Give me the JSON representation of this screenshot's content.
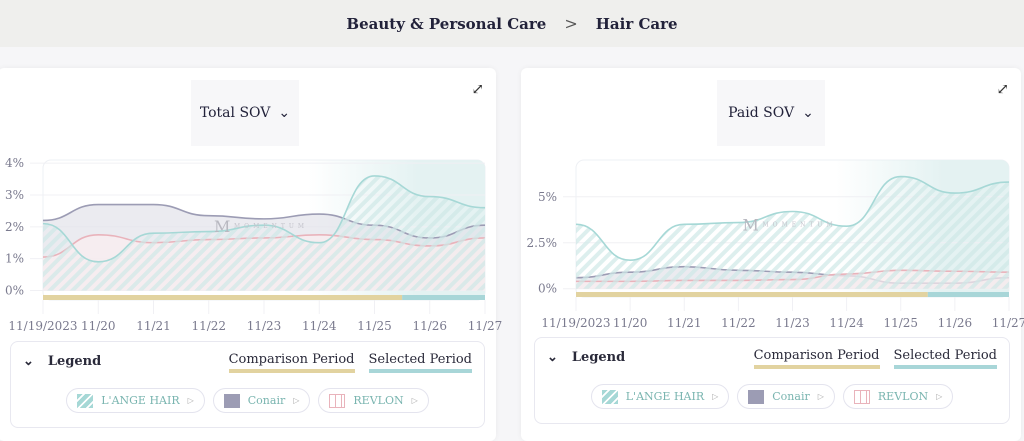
{
  "breadcrumb": {
    "parent": "Beauty & Personal Care",
    "separator": ">",
    "current": "Hair Care"
  },
  "legend": {
    "title": "Legend",
    "comparison": "Comparison Period",
    "selected": "Selected Period",
    "brands": [
      {
        "name": "L'ANGE HAIR",
        "color": "#a6d8d6"
      },
      {
        "name": "Conair",
        "color": "#9c9cb4"
      },
      {
        "name": "REVLON",
        "color": "#e9b3bb"
      }
    ]
  },
  "colors": {
    "comparison": "#e2d3a0",
    "selected": "#a8d6d8"
  },
  "chart_data": [
    {
      "type": "area",
      "title": "Total SOV",
      "categories": [
        "11/19/2023",
        "11/20",
        "11/21",
        "11/22",
        "11/23",
        "11/24",
        "11/25",
        "11/26",
        "11/27"
      ],
      "yticks": [
        "0%",
        "1%",
        "2%",
        "3%",
        "4%"
      ],
      "ytick_values": [
        0,
        1,
        2,
        3,
        4
      ],
      "ylim": [
        -0.3,
        4.1
      ],
      "selected_start": 6.5,
      "series": [
        {
          "name": "L'ANGE HAIR",
          "values": [
            2.1,
            0.9,
            1.8,
            1.85,
            2.05,
            1.5,
            3.6,
            2.95,
            2.6
          ]
        },
        {
          "name": "Conair",
          "values": [
            2.2,
            2.7,
            2.7,
            2.35,
            2.25,
            2.4,
            2.05,
            1.65,
            2.05
          ]
        },
        {
          "name": "REVLON",
          "values": [
            1.05,
            1.75,
            1.5,
            1.6,
            1.65,
            1.75,
            1.6,
            1.4,
            1.65
          ]
        }
      ]
    },
    {
      "type": "area",
      "title": "Paid SOV",
      "categories": [
        "11/19/2023",
        "11/20",
        "11/21",
        "11/22",
        "11/23",
        "11/24",
        "11/25",
        "11/26",
        "11/27"
      ],
      "yticks": [
        "0%",
        "2.5%",
        "5%"
      ],
      "ytick_values": [
        0,
        2.5,
        5
      ],
      "ylim": [
        -0.45,
        7
      ],
      "selected_start": 6.5,
      "series": [
        {
          "name": "L'ANGE HAIR",
          "values": [
            3.5,
            1.55,
            3.5,
            3.6,
            4.2,
            3.4,
            6.1,
            5.2,
            5.8
          ]
        },
        {
          "name": "Conair",
          "values": [
            0.6,
            0.9,
            1.2,
            1.0,
            0.9,
            0.7,
            0.3,
            0.3,
            0.6
          ]
        },
        {
          "name": "REVLON",
          "values": [
            0.4,
            0.4,
            0.45,
            0.45,
            0.5,
            0.8,
            1.0,
            0.95,
            0.9
          ]
        }
      ]
    }
  ]
}
